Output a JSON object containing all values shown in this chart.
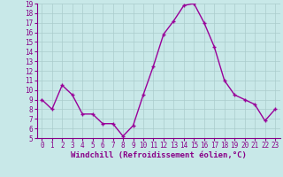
{
  "x": [
    0,
    1,
    2,
    3,
    4,
    5,
    6,
    7,
    8,
    9,
    10,
    11,
    12,
    13,
    14,
    15,
    16,
    17,
    18,
    19,
    20,
    21,
    22,
    23
  ],
  "y": [
    9.0,
    8.0,
    10.5,
    9.5,
    7.5,
    7.5,
    6.5,
    6.5,
    5.2,
    6.3,
    9.5,
    12.5,
    15.8,
    17.2,
    18.8,
    19.0,
    17.0,
    14.5,
    11.0,
    9.5,
    9.0,
    8.5,
    6.8,
    8.0
  ],
  "line_color": "#990099",
  "marker": "+",
  "marker_color": "#990099",
  "bg_color": "#c8e8e8",
  "grid_color": "#aacccc",
  "xlabel": "Windchill (Refroidissement éolien,°C)",
  "xlabel_color": "#880088",
  "tick_color": "#880088",
  "axis_color": "#880088",
  "ylim": [
    5,
    19
  ],
  "xlim": [
    -0.5,
    23.5
  ],
  "yticks": [
    5,
    6,
    7,
    8,
    9,
    10,
    11,
    12,
    13,
    14,
    15,
    16,
    17,
    18,
    19
  ],
  "xticks": [
    0,
    1,
    2,
    3,
    4,
    5,
    6,
    7,
    8,
    9,
    10,
    11,
    12,
    13,
    14,
    15,
    16,
    17,
    18,
    19,
    20,
    21,
    22,
    23
  ],
  "tick_fontsize": 5.5,
  "xlabel_fontsize": 6.5,
  "linewidth": 1.0,
  "markersize": 3.5
}
